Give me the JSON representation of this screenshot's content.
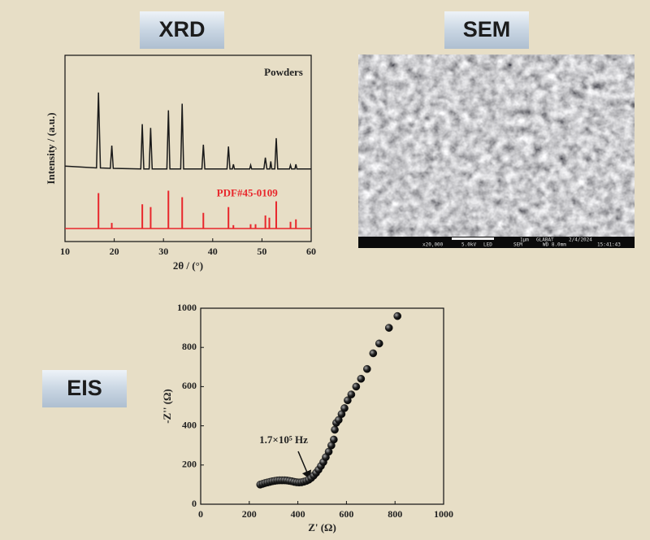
{
  "labels": {
    "xrd": "XRD",
    "sem": "SEM",
    "eis": "EIS"
  },
  "sem": {
    "scale": "1μm",
    "operator": "GLABAT",
    "date": "2/4/2024",
    "magnification": "x20,000",
    "voltage": "5.0kV",
    "detector": "LED",
    "mode": "SEM",
    "wd": "WD 8.0mm",
    "time": "15:41:43"
  },
  "chart_data": [
    {
      "type": "line",
      "xlabel": "2θ / (°)",
      "ylabel": "Intensity / (a.u.)",
      "xlim": [
        10,
        60
      ],
      "xticks": [
        10,
        20,
        30,
        40,
        50,
        60
      ],
      "ylim": [
        0,
        100
      ],
      "series": [
        {
          "name": "Powders",
          "color": "#1a1a1a",
          "kind": "line",
          "x": [
            10,
            16.4,
            16.8,
            17.2,
            19.2,
            19.5,
            19.8,
            25.4,
            25.7,
            26.0,
            27.1,
            27.4,
            27.7,
            30.7,
            31.0,
            31.3,
            33.5,
            33.8,
            34.1,
            37.8,
            38.1,
            38.4,
            42.9,
            43.2,
            43.5,
            44.0,
            44.2,
            44.4,
            47.5,
            47.7,
            47.9,
            50.4,
            50.7,
            51.0,
            51.6,
            51.8,
            52.0,
            52.6,
            52.9,
            53.2,
            55.6,
            55.8,
            56.0,
            56.7,
            56.9,
            57.1,
            60
          ],
          "values": [
            40.5,
            39.5,
            80,
            39.5,
            39.3,
            51.5,
            39.3,
            39,
            63,
            39,
            39,
            61,
            39,
            39,
            70.5,
            39,
            39,
            74,
            39,
            39,
            52,
            39,
            39,
            51,
            39,
            39,
            41.5,
            39,
            39,
            41,
            39,
            39,
            45,
            39,
            39,
            43,
            39,
            39,
            55.5,
            39,
            39,
            41,
            39,
            39,
            41.5,
            39,
            39
          ]
        },
        {
          "name": "PDF#45-0109",
          "color": "#e8262b",
          "kind": "stick",
          "base": 7,
          "x": [
            16.8,
            19.5,
            25.7,
            27.4,
            31.0,
            33.8,
            38.1,
            43.2,
            44.2,
            47.7,
            48.7,
            50.7,
            51.5,
            52.9,
            55.8,
            56.9
          ],
          "values": [
            26,
            10,
            20,
            18.5,
            27.3,
            23.8,
            15.4,
            18.5,
            8.8,
            9.3,
            9.3,
            14,
            12.8,
            21.6,
            10.6,
            11.9
          ]
        }
      ]
    },
    {
      "type": "scatter",
      "xlabel": "Z' (Ω)",
      "ylabel": "-Z'' (Ω)",
      "annotation": "1.7×10⁵ Hz",
      "xlim": [
        0,
        1000
      ],
      "xticks": [
        0,
        200,
        400,
        600,
        800,
        1000
      ],
      "ylim": [
        0,
        1000
      ],
      "yticks": [
        0,
        200,
        400,
        600,
        800,
        1000
      ],
      "series": [
        {
          "color": "#111111",
          "x": [
            245,
            255,
            265,
            275,
            285,
            295,
            305,
            315,
            325,
            335,
            345,
            355,
            365,
            375,
            385,
            395,
            405,
            415,
            425,
            435,
            445,
            455,
            465,
            475,
            485,
            495,
            505,
            515,
            527,
            538,
            548,
            552,
            558,
            568,
            580,
            592,
            605,
            620,
            640,
            660,
            685,
            710,
            735,
            775,
            810
          ],
          "values": [
            100,
            104,
            108,
            111,
            114,
            117,
            119,
            121,
            122,
            122,
            122,
            121,
            119,
            117,
            114,
            112,
            111,
            112,
            115,
            119,
            125,
            134,
            146,
            160,
            176,
            195,
            215,
            240,
            268,
            300,
            330,
            380,
            415,
            430,
            460,
            490,
            530,
            560,
            600,
            640,
            690,
            770,
            820,
            900,
            960
          ]
        }
      ]
    }
  ]
}
